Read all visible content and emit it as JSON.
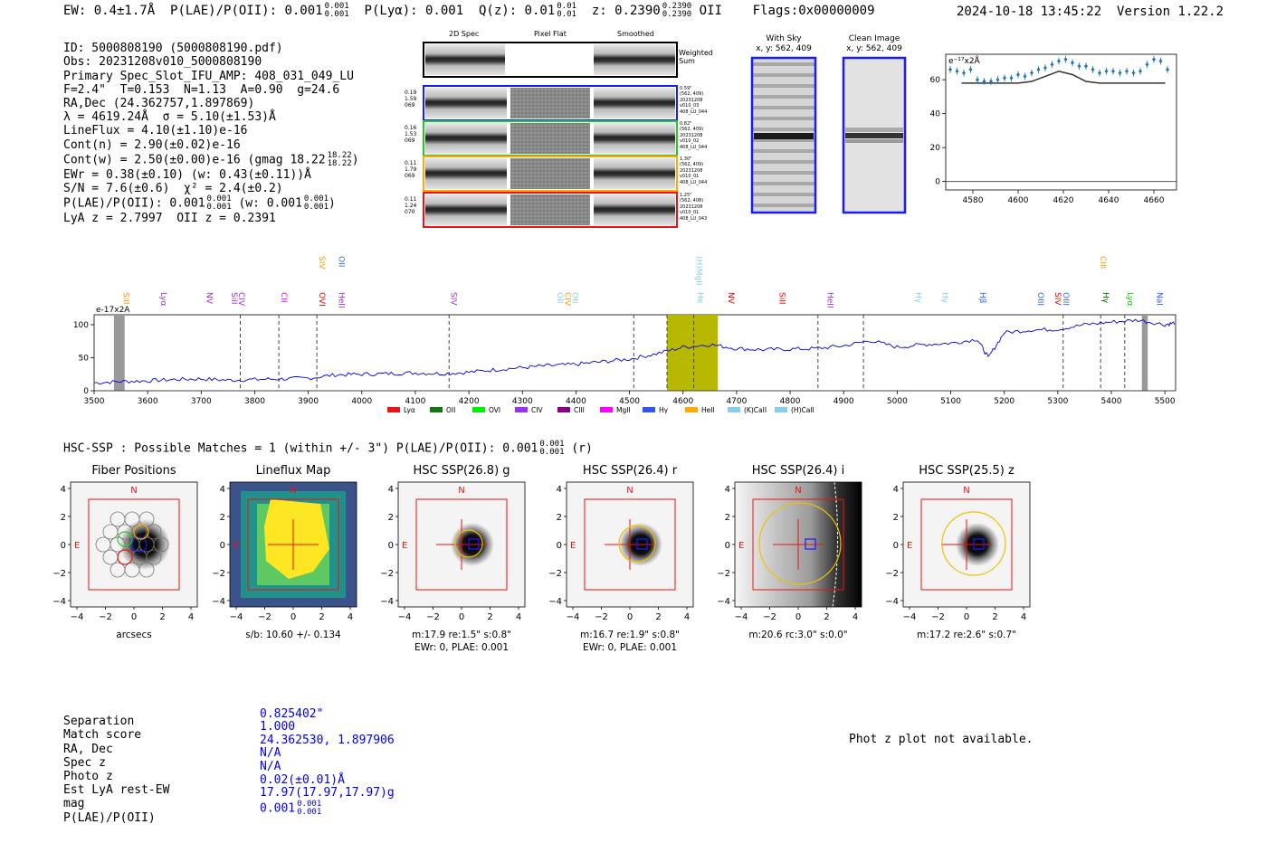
{
  "header": {
    "ew": "EW: 0.4±1.7Å",
    "plae_label": "P(LAE)/P(OII): 0.001",
    "plae_hi": "0.001",
    "plae_lo": "0.001",
    "plya": "P(Lyα): 0.001",
    "qz_label": "Q(z): 0.01",
    "qz_hi": "0.01",
    "qz_lo": "0.01",
    "z_label": "z: 0.2390",
    "z_hi": "0.2390",
    "z_lo": "0.2390",
    "z_line": "OII",
    "flags": "Flags:0x00000009",
    "datetime": "2024-10-18 13:45:22",
    "version": "Version 1.22.2"
  },
  "info_lines": [
    "ID: 5000808190 (5000808190.pdf)",
    "Obs: 20231208v010_5000808190",
    "Primary Spec_Slot_IFU_AMP: 408_031_049_LU",
    "F=2.4\"  T=0.153  N=1.13  A=0.90  g=24.6",
    "RA,Dec (24.362757,1.897869)",
    "λ = 4619.24Å  σ = 5.10(±1.53)Å",
    "LineFlux = 4.10(±1.10)e-16",
    "Cont(n) = 2.90(±0.02)e-16",
    "Cont(w) = 2.50(±0.00)e-16 (gmag 18.22",
    "EWr = 0.38(±0.10) (w: 0.43(±0.11))Å",
    "S/N = 7.6(±0.6)  χ² = 2.4(±0.2)",
    "P(LAE)/P(OII): 0.001",
    "LyA z = 2.7997  OII z = 0.2391"
  ],
  "info_fracs": {
    "gmag_hi": "18.22",
    "gmag_lo": "18.22",
    "plae_hi": "0.001",
    "plae_lo": "0.001",
    "plae_w_prefix": "(w: 0.001",
    "plae_w_hi": "0.001",
    "plae_w_lo": "0.001"
  },
  "stamps": {
    "col_2d": "2D Spec",
    "col_flat": "Pixel Flat",
    "col_smooth": "Smoothed",
    "weighted_sum": "Weighted Sum",
    "rows": [
      {
        "left": [
          "0.19",
          "1.59",
          "069"
        ],
        "right": [
          "0.59\"",
          "(562, 409)",
          "20231208",
          "v010_03",
          "408_LU_044"
        ],
        "color": "#1a1aff"
      },
      {
        "left": [
          "0.16",
          "1.53",
          "069"
        ],
        "right": [
          "0.82\"",
          "(562, 409)",
          "20231208",
          "v010_02",
          "408_LU_044"
        ],
        "color": "#22cc22"
      },
      {
        "left": [
          "0.11",
          "1.79",
          "069"
        ],
        "right": [
          "1.30\"",
          "(562, 409)",
          "20231208",
          "v010_01",
          "408_LU_044"
        ],
        "color": "#ffaa00"
      },
      {
        "left": [
          "0.11",
          "1.24",
          "070"
        ],
        "right": [
          "1.25\"",
          "(562, 408)",
          "20231208",
          "v010_01",
          "408_LU_043"
        ],
        "color": "#ee1111"
      }
    ]
  },
  "sky": {
    "with_sky": "With Sky",
    "with_sky_xy": "x, y: 562, 409",
    "clean": "Clean Image",
    "clean_xy": "x, y: 562, 409"
  },
  "zoom_chart": {
    "ylabel": "e⁻¹⁷x2Å",
    "xticks": [
      "4580",
      "4600",
      "4620",
      "4640",
      "4660"
    ],
    "yticks": [
      "0",
      "20",
      "40",
      "60"
    ]
  },
  "chart_data": [
    {
      "type": "scatter",
      "title": "",
      "ylabel": "e-17x2A",
      "xlim": [
        4568,
        4670
      ],
      "ylim": [
        -5,
        75
      ],
      "x": [
        4570,
        4573,
        4576,
        4579,
        4582,
        4585,
        4588,
        4591,
        4594,
        4597,
        4600,
        4603,
        4606,
        4609,
        4612,
        4615,
        4618,
        4621,
        4624,
        4627,
        4630,
        4633,
        4636,
        4639,
        4642,
        4645,
        4648,
        4651,
        4654,
        4657,
        4660,
        4663,
        4666
      ],
      "y": [
        66,
        65,
        64,
        66,
        60,
        59,
        59,
        60,
        61,
        61,
        63,
        62,
        64,
        66,
        67,
        69,
        71,
        72,
        70,
        68,
        68,
        66,
        64,
        65,
        65,
        64,
        65,
        64,
        65,
        69,
        72,
        71,
        66
      ],
      "fit_x": [
        4575,
        4590,
        4600,
        4606,
        4612,
        4618,
        4624,
        4630,
        4636,
        4650,
        4665
      ],
      "fit_y": [
        58,
        58,
        58,
        59,
        62,
        65,
        63,
        59,
        58,
        58,
        58
      ]
    },
    {
      "type": "line",
      "title": "",
      "ylabel": "e-17x2A",
      "xlim": [
        3500,
        5520
      ],
      "ylim": [
        0,
        115
      ],
      "x": [
        3500,
        3550,
        3600,
        3650,
        3700,
        3750,
        3800,
        3850,
        3900,
        3950,
        4000,
        4050,
        4100,
        4150,
        4200,
        4250,
        4300,
        4350,
        4400,
        4450,
        4500,
        4550,
        4600,
        4650,
        4700,
        4750,
        4800,
        4850,
        4900,
        4950,
        5000,
        5050,
        5100,
        5150,
        5170,
        5200,
        5250,
        5300,
        5350,
        5400,
        5450,
        5500,
        5520
      ],
      "y": [
        12,
        14,
        15,
        17,
        18,
        16,
        17,
        18,
        19,
        24,
        25,
        26,
        27,
        26,
        28,
        32,
        35,
        38,
        40,
        44,
        48,
        56,
        66,
        70,
        64,
        62,
        63,
        64,
        68,
        76,
        66,
        70,
        72,
        78,
        50,
        88,
        92,
        93,
        100,
        104,
        107,
        100,
        103
      ],
      "xticks": [
        "3500",
        "3600",
        "3700",
        "3800",
        "3900",
        "4000",
        "4100",
        "4200",
        "4300",
        "4400",
        "4500",
        "4600",
        "4700",
        "4800",
        "4900",
        "5000",
        "5100",
        "5200",
        "5300",
        "5400",
        "5500"
      ],
      "yticks": [
        "0",
        "50",
        "100"
      ],
      "line_labels": [
        {
          "name": "SiII",
          "wl": 3550,
          "color": "#ff9900",
          "rot": true
        },
        {
          "name": "Lyα",
          "wl": 3620,
          "color": "#9933cc",
          "rot": true
        },
        {
          "name": "NV",
          "wl": 3705,
          "color": "#9933cc",
          "rot": true
        },
        {
          "name": "SiII",
          "wl": 3752,
          "color": "#9933cc",
          "rot": true
        },
        {
          "name": "CIV",
          "wl": 3765,
          "color": "#9933cc",
          "rot": true
        },
        {
          "name": "CII",
          "wl": 3845,
          "color": "#ff00ff",
          "rot": true
        },
        {
          "name": "OVI",
          "wl": 3916,
          "color": "#ee0000",
          "rot": true
        },
        {
          "name": "SIV",
          "wl": 3916,
          "color": "#ff9900",
          "rot": true,
          "high": true
        },
        {
          "name": "HeII",
          "wl": 3952,
          "color": "#9933cc",
          "rot": true
        },
        {
          "name": "OII",
          "wl": 3952,
          "color": "#3366ff",
          "rot": true,
          "high": true
        },
        {
          "name": "SIV",
          "wl": 4162,
          "color": "#9933cc",
          "rot": true
        },
        {
          "name": "OII",
          "wl": 4360,
          "color": "#88ccee",
          "rot": true
        },
        {
          "name": "CIV",
          "wl": 4375,
          "color": "#ff9900",
          "rot": true
        },
        {
          "name": "OII",
          "wl": 4388,
          "color": "#88ccee",
          "rot": true
        },
        {
          "name": "(H)MgII",
          "wl": 4620,
          "color": "#88ccee",
          "rot": true,
          "high": true
        },
        {
          "name": "He",
          "wl": 4622,
          "color": "#88ccee",
          "rot": true
        },
        {
          "name": "NV",
          "wl": 4680,
          "color": "#ee0000",
          "rot": true
        },
        {
          "name": "SiII",
          "wl": 4775,
          "color": "#ee0000",
          "rot": true
        },
        {
          "name": "HeII",
          "wl": 4865,
          "color": "#9933cc",
          "rot": true
        },
        {
          "name": "Hγ",
          "wl": 5030,
          "color": "#88ccee",
          "rot": true
        },
        {
          "name": "Hγ",
          "wl": 5080,
          "color": "#88ccee",
          "rot": true
        },
        {
          "name": "Hβ",
          "wl": 5150,
          "color": "#3366ff",
          "rot": true
        },
        {
          "name": "OIII",
          "wl": 5258,
          "color": "#3366ff",
          "rot": true
        },
        {
          "name": "SIV",
          "wl": 5290,
          "color": "#ee0000",
          "rot": true
        },
        {
          "name": "OIII",
          "wl": 5305,
          "color": "#3366ff",
          "rot": true
        },
        {
          "name": "CIII",
          "wl": 5375,
          "color": "#ff9900",
          "rot": true,
          "high": true
        },
        {
          "name": "Hγ",
          "wl": 5380,
          "color": "#006600",
          "rot": true
        },
        {
          "name": "Lyα",
          "wl": 5425,
          "color": "#00cc00",
          "rot": true
        },
        {
          "name": "NaI",
          "wl": 5480,
          "color": "#3366ff",
          "rot": true
        }
      ],
      "dashed_lines": [
        3773,
        3845,
        3916,
        4163,
        4508,
        4570,
        4620,
        4852,
        4937,
        5310,
        5380,
        5425
      ],
      "legend": [
        {
          "name": "Lyα",
          "color": "#ee1111"
        },
        {
          "name": "OII",
          "color": "#117711"
        },
        {
          "name": "OVI",
          "color": "#00ee00"
        },
        {
          "name": "CIV",
          "color": "#9933ee"
        },
        {
          "name": "CIII",
          "color": "#880088"
        },
        {
          "name": "MgII",
          "color": "#ff00ff"
        },
        {
          "name": "Hγ",
          "color": "#3355ee"
        },
        {
          "name": "HeII",
          "color": "#ffaa00"
        },
        {
          "name": "(K)CaII",
          "color": "#88ccee"
        },
        {
          "name": "(H)CaII",
          "color": "#88ccee"
        }
      ]
    }
  ],
  "hsc": {
    "summary": "HSC-SSP : Possible Matches = 1 (within +/- 3\")  P(LAE)/P(OII): 0.001",
    "summary_hi": "0.001",
    "summary_lo": "0.001",
    "summary_band": "(r)",
    "panels": [
      {
        "title": "Fiber Positions",
        "caption1": "arcsecs",
        "caption2": ""
      },
      {
        "title": "Lineflux Map",
        "caption1": "s/b: 10.60 +/- 0.134",
        "caption2": ""
      },
      {
        "title": "HSC SSP(26.8) g",
        "caption1": "m:17.9  re:1.5\"  s:0.8\"",
        "caption2": "EWr: 0, PLAE: 0.001"
      },
      {
        "title": "HSC SSP(26.4) r",
        "caption1": "m:16.7  re:1.9\"  s:0.8\"",
        "caption2": "EWr: 0, PLAE: 0.001"
      },
      {
        "title": "HSC SSP(26.4) i",
        "caption1": "m:20.6 rc:3.0\"  s:0.0\"",
        "caption2": ""
      },
      {
        "title": "HSC SSP(25.5) z",
        "caption1": "m:17.2  re:2.6\"  s:0.7\"",
        "caption2": ""
      }
    ],
    "ticks": [
      "4",
      "2",
      "0",
      "−2",
      "−4"
    ],
    "xticks": [
      "−4",
      "−2",
      "0",
      "2",
      "4"
    ],
    "north": "N",
    "east": "E"
  },
  "match_table": {
    "labels": [
      "Separation",
      "Match score",
      "RA, Dec",
      "Spec z",
      "Photo z",
      "Est LyA rest-EW",
      "mag",
      "P(LAE)/P(OII)"
    ],
    "values": [
      "0.825402\"",
      "1.000",
      "24.362530, 1.897906",
      "N/A",
      "N/A",
      "0.02(±0.01)Å",
      "17.97(17.97,17.97)g",
      "0.001"
    ],
    "plae_hi": "0.001",
    "plae_lo": "0.001"
  },
  "photz_msg": "Phot z plot not available."
}
